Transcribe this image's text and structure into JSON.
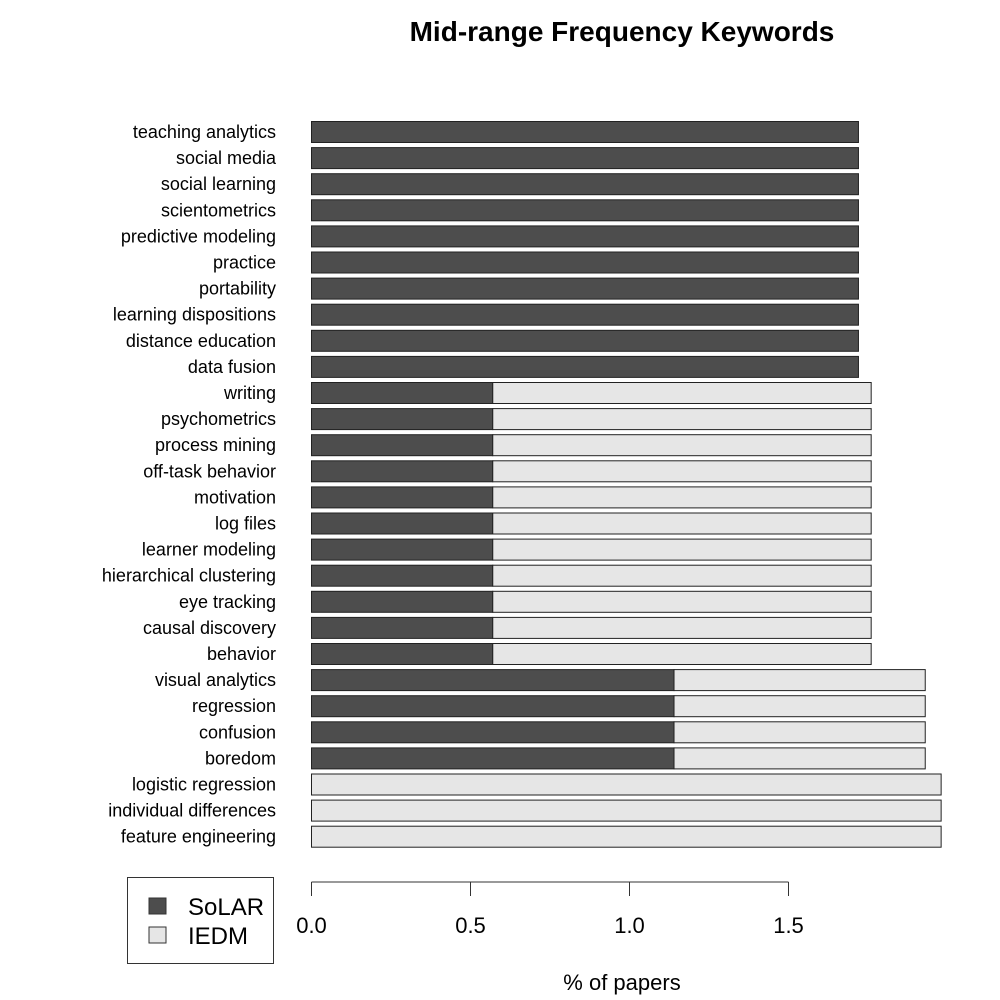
{
  "chart_data": {
    "type": "bar",
    "orientation": "horizontal",
    "stacked": true,
    "title": "Mid-range Frequency Keywords",
    "xlabel": "% of papers",
    "ylabel": "",
    "xlim": [
      0,
      1.98
    ],
    "xticks": [
      0.0,
      0.5,
      1.0,
      1.5
    ],
    "xtick_labels": [
      "0.0",
      "0.5",
      "1.0",
      "1.5"
    ],
    "grid": false,
    "legend_position": "bottom-left",
    "categories": [
      "teaching analytics",
      "social media",
      "social learning",
      "scientometrics",
      "predictive modeling",
      "practice",
      "portability",
      "learning dispositions",
      "distance education",
      "data fusion",
      "writing",
      "psychometrics",
      "process mining",
      "off-task behavior",
      "motivation",
      "log files",
      "learner modeling",
      "hierarchical clustering",
      "eye tracking",
      "causal discovery",
      "behavior",
      "visual analytics",
      "regression",
      "confusion",
      "boredom",
      "logistic regression",
      "individual differences",
      "feature engineering"
    ],
    "series": [
      {
        "name": "SoLAR",
        "color": "#4d4d4d",
        "values": [
          1.72,
          1.72,
          1.72,
          1.72,
          1.72,
          1.72,
          1.72,
          1.72,
          1.72,
          1.72,
          0.57,
          0.57,
          0.57,
          0.57,
          0.57,
          0.57,
          0.57,
          0.57,
          0.57,
          0.57,
          0.57,
          1.14,
          1.14,
          1.14,
          1.14,
          0.0,
          0.0,
          0.0
        ]
      },
      {
        "name": "IEDM",
        "color": "#e6e6e6",
        "values": [
          0.0,
          0.0,
          0.0,
          0.0,
          0.0,
          0.0,
          0.0,
          0.0,
          0.0,
          0.0,
          1.19,
          1.19,
          1.19,
          1.19,
          1.19,
          1.19,
          1.19,
          1.19,
          1.19,
          1.19,
          1.19,
          0.79,
          0.79,
          0.79,
          0.79,
          1.98,
          1.98,
          1.98
        ]
      }
    ]
  }
}
